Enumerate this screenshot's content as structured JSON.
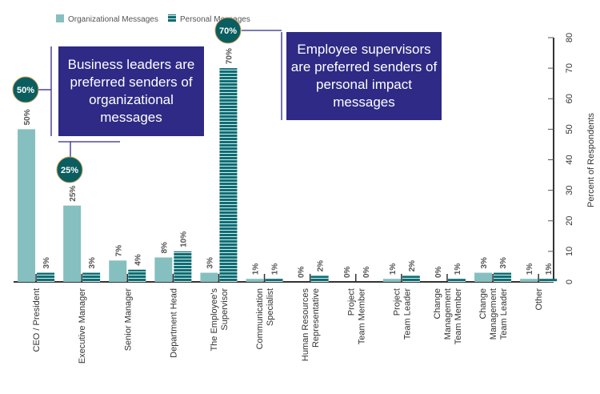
{
  "chart_data": {
    "type": "bar",
    "title": "",
    "xlabel": "",
    "ylabel": "Percent of Respondents",
    "ylim": [
      0,
      80
    ],
    "yticks": [
      0,
      10,
      20,
      30,
      40,
      50,
      60,
      70,
      80
    ],
    "legend_position": "top-left",
    "categories": [
      [
        "CEO / President"
      ],
      [
        "Executive Manager"
      ],
      [
        "Senior Manager"
      ],
      [
        "Department Head"
      ],
      [
        "The Employee's",
        "Supervisor"
      ],
      [
        "Communication",
        "Specialist"
      ],
      [
        "Human Resources",
        "Representative"
      ],
      [
        "Project",
        "Team Member"
      ],
      [
        "Project",
        "Team Leader"
      ],
      [
        "Change",
        "Management",
        "Team Member"
      ],
      [
        "Change",
        "Management",
        "Team Leader"
      ],
      [
        "Other"
      ]
    ],
    "series": [
      {
        "name": "Organizational Messages",
        "color": "#86bfbf",
        "values": [
          50,
          25,
          7,
          8,
          3,
          1,
          0,
          0,
          1,
          0,
          3,
          1
        ]
      },
      {
        "name": "Personal Messages",
        "color": "#0e6e74",
        "values": [
          3,
          3,
          4,
          10,
          70,
          1,
          2,
          0,
          2,
          1,
          3,
          1
        ]
      }
    ],
    "annotations": [
      {
        "text": "Business leaders are preferred senders of organizational messages",
        "highlights": [
          "50%",
          "25%"
        ]
      },
      {
        "text": "Employee supervisors are preferred senders of personal impact messages",
        "highlights": [
          "70%"
        ]
      }
    ]
  }
}
